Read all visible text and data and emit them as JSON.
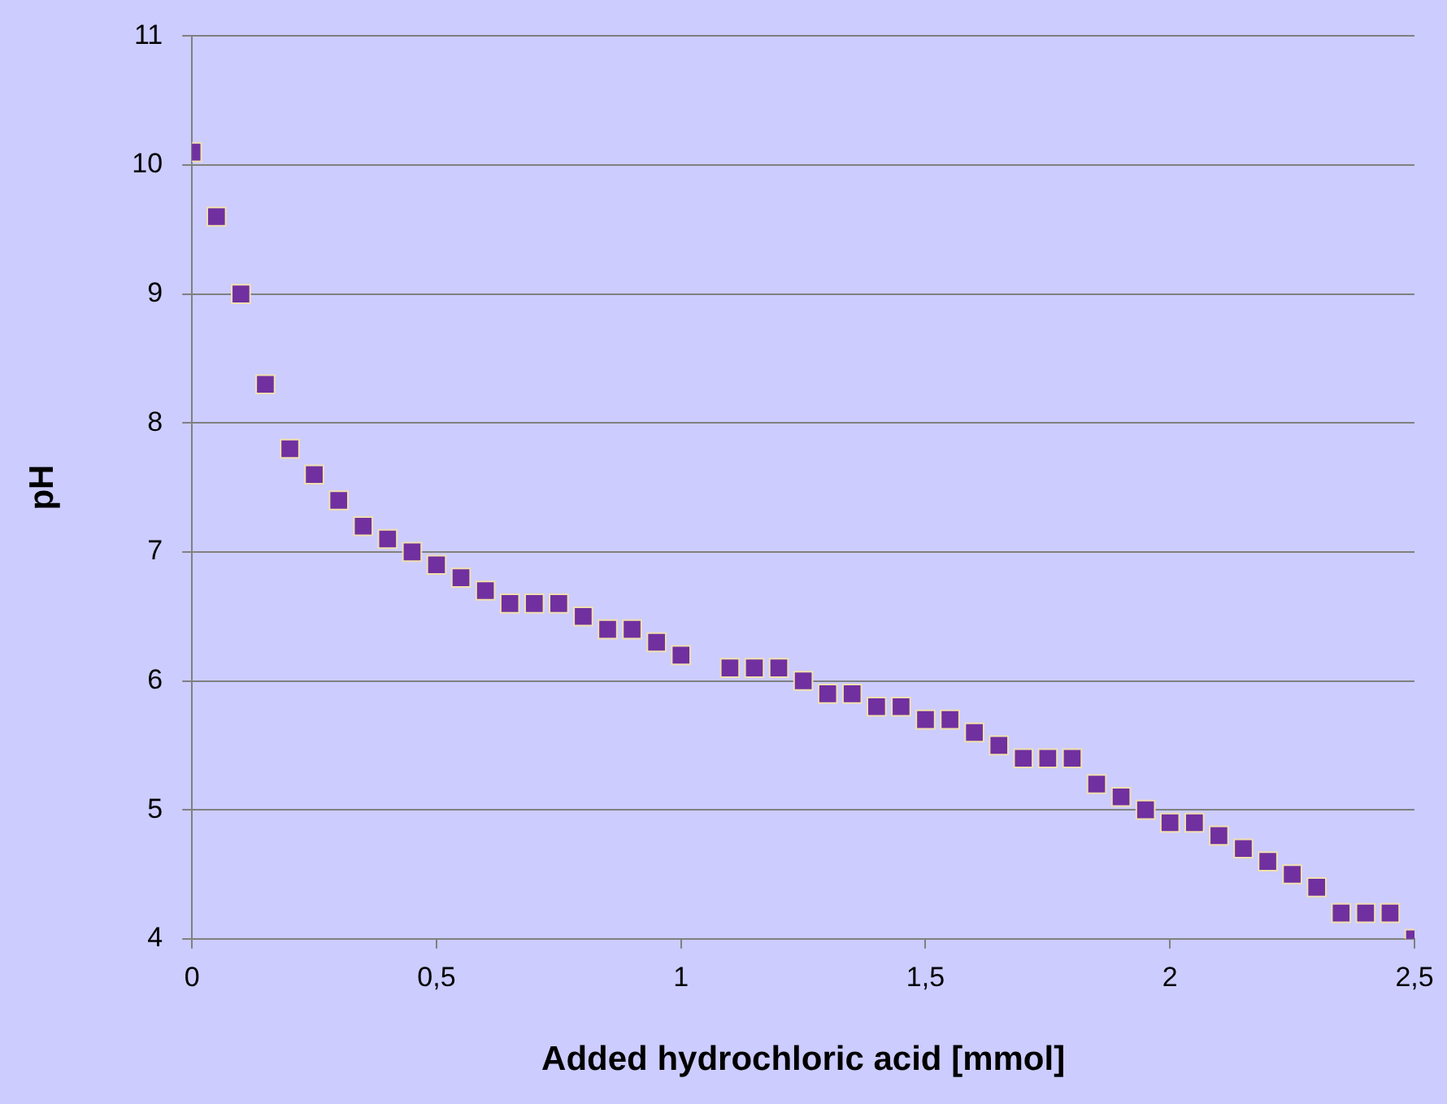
{
  "chart_data": {
    "type": "scatter",
    "xlabel": "Added hydrochloric acid [mmol]",
    "ylabel": "pH",
    "x": [
      0,
      0.05,
      0.1,
      0.15,
      0.2,
      0.25,
      0.3,
      0.35,
      0.4,
      0.45,
      0.5,
      0.55,
      0.6,
      0.65,
      0.7,
      0.75,
      0.8,
      0.85,
      0.9,
      0.95,
      1.0,
      1.1,
      1.15,
      1.2,
      1.25,
      1.3,
      1.35,
      1.4,
      1.45,
      1.5,
      1.55,
      1.6,
      1.65,
      1.7,
      1.75,
      1.8,
      1.85,
      1.9,
      1.95,
      2.0,
      2.05,
      2.1,
      2.15,
      2.2,
      2.25,
      2.3,
      2.35,
      2.4,
      2.45,
      2.5
    ],
    "series": [
      {
        "color": "#7030a0",
        "values": [
          10.1,
          9.6,
          9.0,
          8.3,
          7.8,
          7.6,
          7.4,
          7.2,
          7.1,
          7.0,
          6.9,
          6.8,
          6.7,
          6.6,
          6.6,
          6.6,
          6.5,
          6.4,
          6.4,
          6.3,
          6.2,
          6.1,
          6.1,
          6.1,
          6.0,
          5.9,
          5.9,
          5.8,
          5.8,
          5.7,
          5.7,
          5.6,
          5.5,
          5.4,
          5.4,
          5.4,
          5.2,
          5.1,
          5.0,
          4.9,
          4.9,
          4.8,
          4.7,
          4.6,
          4.5,
          4.4,
          4.2,
          4.2,
          4.2,
          4.0
        ]
      }
    ],
    "xlim": [
      0,
      2.5
    ],
    "xticks": [
      0,
      {
        "value": 0.5,
        "label": "0,5"
      },
      1,
      {
        "value": 1.5,
        "label": "1,5"
      },
      2,
      {
        "value": 2.5,
        "label": "2,5"
      }
    ],
    "ylim": [
      4,
      11
    ],
    "yticks": [
      4,
      5,
      6,
      7,
      8,
      9,
      10,
      11
    ],
    "grid": "y",
    "legend": false,
    "marker": "square"
  }
}
